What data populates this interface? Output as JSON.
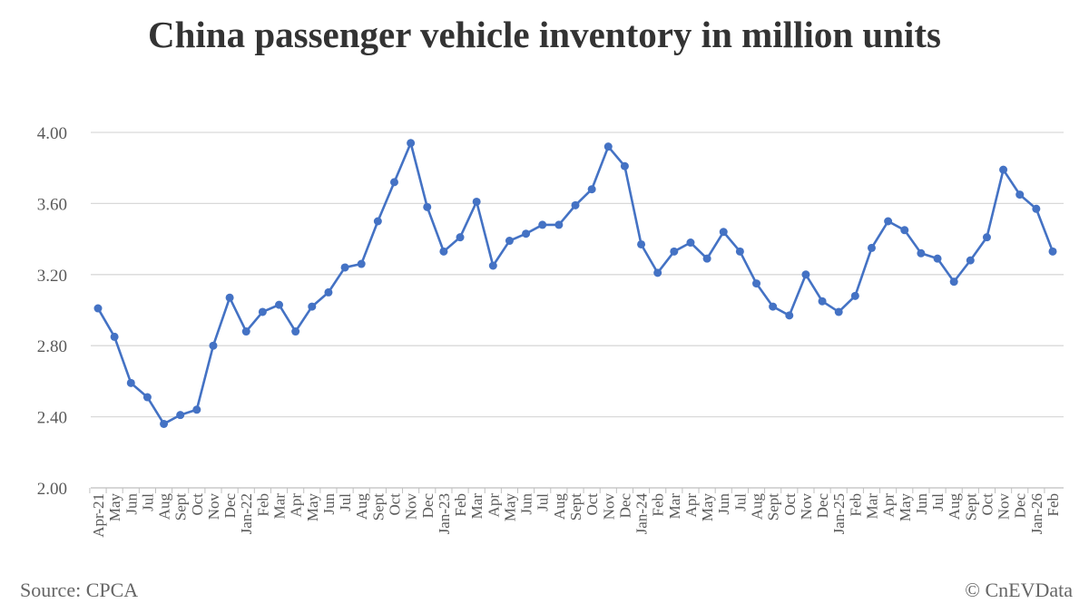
{
  "chart_data": {
    "type": "line",
    "title": "China passenger vehicle inventory in million units",
    "xlabel": "",
    "ylabel": "",
    "ylim": [
      2.0,
      4.0
    ],
    "yticks": [
      "2.00",
      "2.40",
      "2.80",
      "3.20",
      "3.60",
      "4.00"
    ],
    "grid": true,
    "color": "#4472C4",
    "categories": [
      "Apr-21",
      "May",
      "Jun",
      "Jul",
      "Aug",
      "Sept",
      "Oct",
      "Nov",
      "Dec",
      "Jan-22",
      "Feb",
      "Mar",
      "Apr",
      "May",
      "Jun",
      "Jul",
      "Aug",
      "Sept",
      "Oct",
      "Nov",
      "Dec",
      "Jan-23",
      "Feb",
      "Mar",
      "Apr",
      "May",
      "Jun",
      "Jul",
      "Aug",
      "Sept",
      "Oct",
      "Nov",
      "Dec",
      "Jan-24",
      "Feb",
      "Mar",
      "Apr",
      "May",
      "Jun",
      "Jul",
      "Aug",
      "Sept",
      "Oct",
      "Nov",
      "Dec",
      "Jan-25",
      "Feb",
      "Mar",
      "Apr",
      "May",
      "Jun",
      "Jul",
      "Aug",
      "Sept",
      "Oct",
      "Nov",
      "Dec",
      "Jan-26",
      "Feb"
    ],
    "series": [
      {
        "name": "Inventory",
        "values": [
          3.01,
          2.85,
          2.59,
          2.51,
          2.36,
          2.41,
          2.44,
          2.8,
          3.07,
          2.88,
          2.99,
          3.03,
          2.88,
          3.02,
          3.1,
          3.24,
          3.26,
          3.5,
          3.72,
          3.94,
          3.58,
          3.33,
          3.41,
          3.61,
          3.25,
          3.39,
          3.43,
          3.48,
          3.48,
          3.59,
          3.68,
          3.92,
          3.81,
          3.37,
          3.21,
          3.33,
          3.38,
          3.29,
          3.44,
          3.33,
          3.15,
          3.02,
          2.97,
          3.2,
          3.05,
          2.99,
          3.08,
          3.35,
          3.5,
          3.45,
          3.32,
          3.29,
          3.16,
          3.28,
          3.41,
          3.79,
          3.65,
          3.57,
          3.33
        ]
      }
    ]
  },
  "footer": {
    "source": "Source: CPCA",
    "copyright": "© CnEVData"
  }
}
